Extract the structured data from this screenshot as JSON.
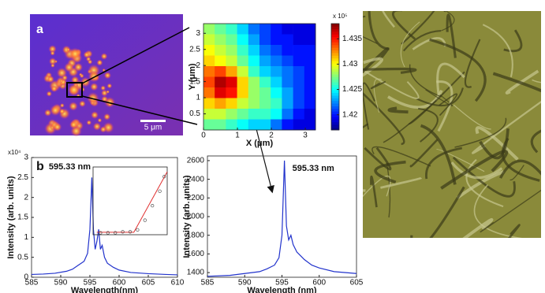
{
  "panel_labels": [
    "a",
    "b"
  ],
  "scale_bar": "5 μm",
  "chart_data": [
    {
      "type": "heatmap",
      "xlabel": "X (μm)",
      "ylabel": "Y (μm)",
      "xlim": [
        0,
        3.3
      ],
      "ylim": [
        0,
        3.3
      ],
      "xticks": [
        0,
        1,
        2,
        3
      ],
      "yticks": [
        0.5,
        1,
        1.5,
        2,
        2.5,
        3
      ],
      "colorbar_multiplier": "x 10⁵",
      "clim": [
        141700,
        143800
      ],
      "cticks": [
        {
          "value": 142000,
          "label": "1.42"
        },
        {
          "value": 142500,
          "label": "1.425"
        },
        {
          "value": 143000,
          "label": "1.43"
        },
        {
          "value": 143500,
          "label": "1.435"
        }
      ],
      "matrix": [
        [
          142800,
          142700,
          142600,
          142400,
          142200,
          142100,
          142000,
          141900,
          141900,
          141900
        ],
        [
          142900,
          142800,
          142700,
          142500,
          142300,
          142100,
          142000,
          142000,
          141900,
          141900
        ],
        [
          143000,
          142900,
          142800,
          142600,
          142400,
          142200,
          142100,
          142000,
          142000,
          142000
        ],
        [
          143100,
          143000,
          142900,
          142700,
          142500,
          142300,
          142200,
          142100,
          142000,
          142000
        ],
        [
          143300,
          143400,
          143200,
          142900,
          142600,
          142400,
          142300,
          142200,
          142100,
          142000
        ],
        [
          143400,
          143700,
          143600,
          143100,
          142800,
          142600,
          142400,
          142200,
          142100,
          142000
        ],
        [
          143300,
          143600,
          143500,
          143100,
          142800,
          142700,
          142500,
          142300,
          142100,
          142000
        ],
        [
          143100,
          143200,
          143100,
          142900,
          142800,
          142700,
          142600,
          142300,
          142100,
          142000
        ],
        [
          142900,
          142900,
          142800,
          142700,
          142600,
          142600,
          142500,
          142200,
          142000,
          141900
        ],
        [
          142700,
          142700,
          142600,
          142500,
          142400,
          142400,
          142200,
          142000,
          141900,
          141900
        ]
      ]
    },
    {
      "type": "line",
      "annotation": "595.33 nm",
      "xlabel": "Wavelength(nm)",
      "ylabel": "Intensity (arb. units)",
      "y_multiplier": "x10⁴",
      "color": "#2233cc",
      "xlim": [
        585,
        610
      ],
      "ylim": [
        0,
        30000
      ],
      "xticks": [
        585,
        590,
        595,
        600,
        605,
        610
      ],
      "yticks": [
        0,
        {
          "value": 5000,
          "label": "0.5"
        },
        {
          "value": 10000,
          "label": "1"
        },
        {
          "value": 15000,
          "label": "1.5"
        },
        {
          "value": 20000,
          "label": "2"
        },
        {
          "value": 25000,
          "label": "2.5"
        },
        {
          "value": 30000,
          "label": "3"
        }
      ],
      "x": [
        585,
        587,
        589,
        591,
        592,
        593,
        594,
        594.6,
        595,
        595.33,
        595.6,
        595.9,
        596.2,
        596.5,
        596.8,
        597.1,
        597.5,
        598,
        599,
        600,
        602,
        605,
        608,
        610
      ],
      "values": [
        700,
        800,
        1000,
        1500,
        2000,
        3000,
        4000,
        6000,
        12000,
        25000,
        12000,
        7000,
        9000,
        12000,
        7000,
        8000,
        5000,
        3500,
        2500,
        1800,
        1200,
        900,
        700,
        600
      ]
    },
    {
      "type": "scatter",
      "color": "#555555",
      "xlim": [
        0,
        10
      ],
      "ylim": [
        0,
        7
      ],
      "x": [
        1,
        2,
        3,
        4,
        5,
        6,
        7,
        8,
        9,
        9.6
      ],
      "values": [
        0.2,
        0.2,
        0.2,
        0.3,
        0.3,
        0.5,
        1.5,
        3,
        4.5,
        6
      ],
      "fit": {
        "color": "#e03030",
        "x": [
          0.5,
          5.5,
          10
        ],
        "values": [
          0.25,
          0.25,
          6.5
        ]
      }
    },
    {
      "type": "line",
      "annotation": "595.33 nm",
      "xlabel": "Wavelength (nm)",
      "ylabel": "Intensity (arb. units)",
      "color": "#2233cc",
      "xlim": [
        585,
        605
      ],
      "ylim": [
        1350,
        2650
      ],
      "xticks": [
        585,
        590,
        595,
        600,
        605
      ],
      "yticks": [
        1400,
        1600,
        1800,
        2000,
        2200,
        2400,
        2600
      ],
      "x": [
        585,
        588,
        590,
        592,
        593,
        594,
        594.6,
        595,
        595.33,
        595.6,
        595.9,
        596.2,
        596.5,
        597,
        598,
        599,
        600,
        602,
        605
      ],
      "values": [
        1360,
        1370,
        1390,
        1410,
        1440,
        1480,
        1560,
        1800,
        2600,
        1900,
        1750,
        1800,
        1700,
        1620,
        1540,
        1480,
        1450,
        1410,
        1390
      ]
    }
  ]
}
